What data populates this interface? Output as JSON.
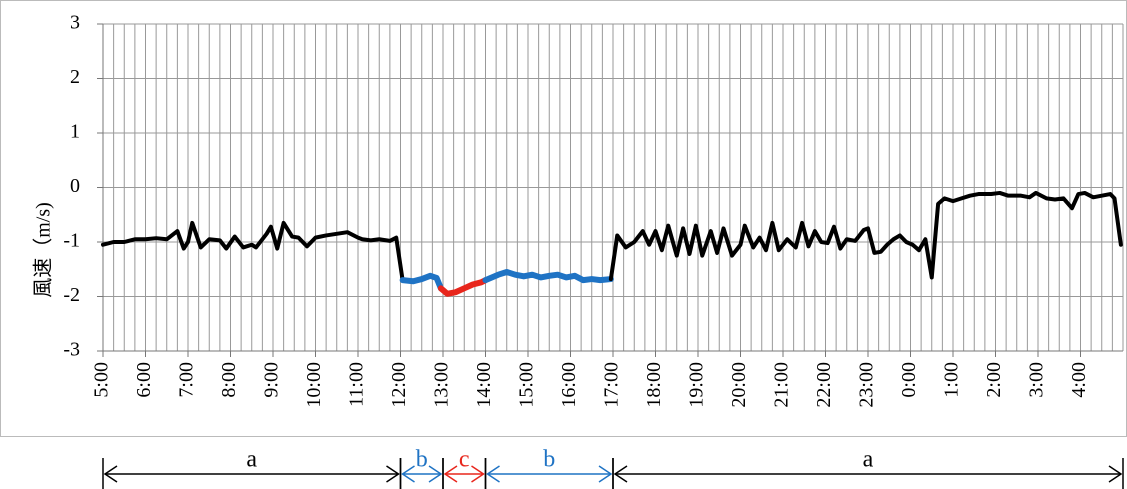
{
  "chart_data": {
    "type": "line",
    "y_label": "風速（m/s)",
    "xlim": [
      0,
      24
    ],
    "ylim": [
      -3,
      3
    ],
    "yticks": [
      3,
      2,
      1,
      0,
      -1,
      -2,
      -3
    ],
    "xticks": [
      {
        "value": 0,
        "label": "5:00"
      },
      {
        "value": 1,
        "label": "6:00"
      },
      {
        "value": 2,
        "label": "7:00"
      },
      {
        "value": 3,
        "label": "8:00"
      },
      {
        "value": 4,
        "label": "9:00"
      },
      {
        "value": 5,
        "label": "10:00"
      },
      {
        "value": 6,
        "label": "11:00"
      },
      {
        "value": 7,
        "label": "12:00"
      },
      {
        "value": 8,
        "label": "13:00"
      },
      {
        "value": 9,
        "label": "14:00"
      },
      {
        "value": 10,
        "label": "15:00"
      },
      {
        "value": 11,
        "label": "16:00"
      },
      {
        "value": 12,
        "label": "17:00"
      },
      {
        "value": 13,
        "label": "18:00"
      },
      {
        "value": 14,
        "label": "19:00"
      },
      {
        "value": 15,
        "label": "20:00"
      },
      {
        "value": 16,
        "label": "21:00"
      },
      {
        "value": 17,
        "label": "22:00"
      },
      {
        "value": 18,
        "label": "23:00"
      },
      {
        "value": 19,
        "label": "0:00"
      },
      {
        "value": 20,
        "label": "1:00"
      },
      {
        "value": 21,
        "label": "2:00"
      },
      {
        "value": 22,
        "label": "3:00"
      },
      {
        "value": 23,
        "label": "4:00"
      }
    ],
    "grid": true,
    "minor_grid_step": 0.25,
    "series": [
      {
        "color": "#000000",
        "x": [
          0,
          0.25,
          0.5,
          0.75,
          1,
          1.25,
          1.5,
          1.75,
          1.9,
          2,
          2.1,
          2.3,
          2.5,
          2.75,
          2.9,
          3.1,
          3.3,
          3.5,
          3.6,
          3.85,
          3.95,
          4.1,
          4.25,
          4.45,
          4.6,
          4.8,
          5,
          5.25,
          5.5,
          5.75,
          6,
          6.1,
          6.3,
          6.5,
          6.75,
          6.9,
          7.05
        ],
        "values": [
          -1.05,
          -1.0,
          -1.0,
          -0.95,
          -0.95,
          -0.93,
          -0.95,
          -0.8,
          -1.12,
          -1.0,
          -0.65,
          -1.1,
          -0.95,
          -0.97,
          -1.12,
          -0.9,
          -1.1,
          -1.05,
          -1.1,
          -0.85,
          -0.72,
          -1.12,
          -0.65,
          -0.9,
          -0.92,
          -1.08,
          -0.92,
          -0.88,
          -0.85,
          -0.82,
          -0.92,
          -0.95,
          -0.97,
          -0.95,
          -0.98,
          -0.92,
          -1.7
        ]
      },
      {
        "color": "#1f73c4",
        "x": [
          7.05,
          7.3,
          7.5,
          7.7,
          7.85,
          7.95
        ],
        "values": [
          -1.7,
          -1.72,
          -1.68,
          -1.62,
          -1.66,
          -1.85
        ]
      },
      {
        "color": "#e8261c",
        "x": [
          7.95,
          8.1,
          8.3,
          8.5,
          8.7,
          8.9,
          9.0
        ],
        "values": [
          -1.85,
          -1.95,
          -1.92,
          -1.85,
          -1.78,
          -1.74,
          -1.7
        ]
      },
      {
        "color": "#1f73c4",
        "x": [
          9.0,
          9.3,
          9.5,
          9.7,
          9.9,
          10.1,
          10.3,
          10.5,
          10.7,
          10.9,
          11.1,
          11.3,
          11.5,
          11.7,
          11.95
        ],
        "values": [
          -1.7,
          -1.6,
          -1.55,
          -1.6,
          -1.63,
          -1.6,
          -1.65,
          -1.62,
          -1.6,
          -1.65,
          -1.62,
          -1.7,
          -1.68,
          -1.7,
          -1.68
        ]
      },
      {
        "color": "#000000",
        "x": [
          11.95,
          12.1,
          12.3,
          12.5,
          12.7,
          12.85,
          13.0,
          13.15,
          13.3,
          13.5,
          13.65,
          13.8,
          13.95,
          14.1,
          14.3,
          14.45,
          14.6,
          14.8,
          15.0,
          15.1,
          15.3,
          15.45,
          15.6,
          15.75,
          15.9,
          16.1,
          16.3,
          16.45,
          16.6,
          16.75,
          16.9,
          17.05,
          17.2,
          17.35,
          17.5,
          17.7,
          17.9,
          18.0,
          18.15,
          18.3,
          18.45,
          18.6,
          18.75,
          18.9,
          19.05,
          19.2,
          19.35,
          19.5,
          19.65,
          19.8,
          20.0,
          20.2,
          20.4,
          20.6,
          20.9,
          21.1,
          21.3,
          21.6,
          21.8,
          21.95,
          22.2,
          22.4,
          22.6,
          22.8,
          22.95,
          23.1,
          23.3,
          23.5,
          23.7,
          23.8,
          23.95
        ],
        "values": [
          -1.68,
          -0.88,
          -1.1,
          -1.0,
          -0.8,
          -1.05,
          -0.8,
          -1.15,
          -0.7,
          -1.25,
          -0.75,
          -1.22,
          -0.7,
          -1.25,
          -0.8,
          -1.2,
          -0.75,
          -1.25,
          -1.05,
          -0.7,
          -1.1,
          -0.92,
          -1.15,
          -0.65,
          -1.15,
          -0.95,
          -1.1,
          -0.65,
          -1.08,
          -0.8,
          -1.0,
          -1.02,
          -0.72,
          -1.12,
          -0.95,
          -0.98,
          -0.78,
          -0.75,
          -1.2,
          -1.18,
          -1.05,
          -0.95,
          -0.88,
          -1.0,
          -1.05,
          -1.15,
          -0.95,
          -1.65,
          -0.3,
          -0.2,
          -0.25,
          -0.2,
          -0.15,
          -0.12,
          -0.12,
          -0.1,
          -0.15,
          -0.15,
          -0.18,
          -0.1,
          -0.2,
          -0.22,
          -0.2,
          -0.38,
          -0.12,
          -0.1,
          -0.18,
          -0.15,
          -0.12,
          -0.2,
          -1.05
        ]
      }
    ],
    "annotations": [
      {
        "label": "a",
        "x0": 0,
        "x1": 7,
        "color": "#000000"
      },
      {
        "label": "b",
        "x0": 7,
        "x1": 8,
        "color": "#1f73c4"
      },
      {
        "label": "c",
        "x0": 8,
        "x1": 9,
        "color": "#e8261c"
      },
      {
        "label": "b",
        "x0": 9,
        "x1": 12,
        "color": "#1f73c4"
      },
      {
        "label": "a",
        "x0": 12,
        "x1": 24,
        "color": "#000000"
      }
    ]
  }
}
